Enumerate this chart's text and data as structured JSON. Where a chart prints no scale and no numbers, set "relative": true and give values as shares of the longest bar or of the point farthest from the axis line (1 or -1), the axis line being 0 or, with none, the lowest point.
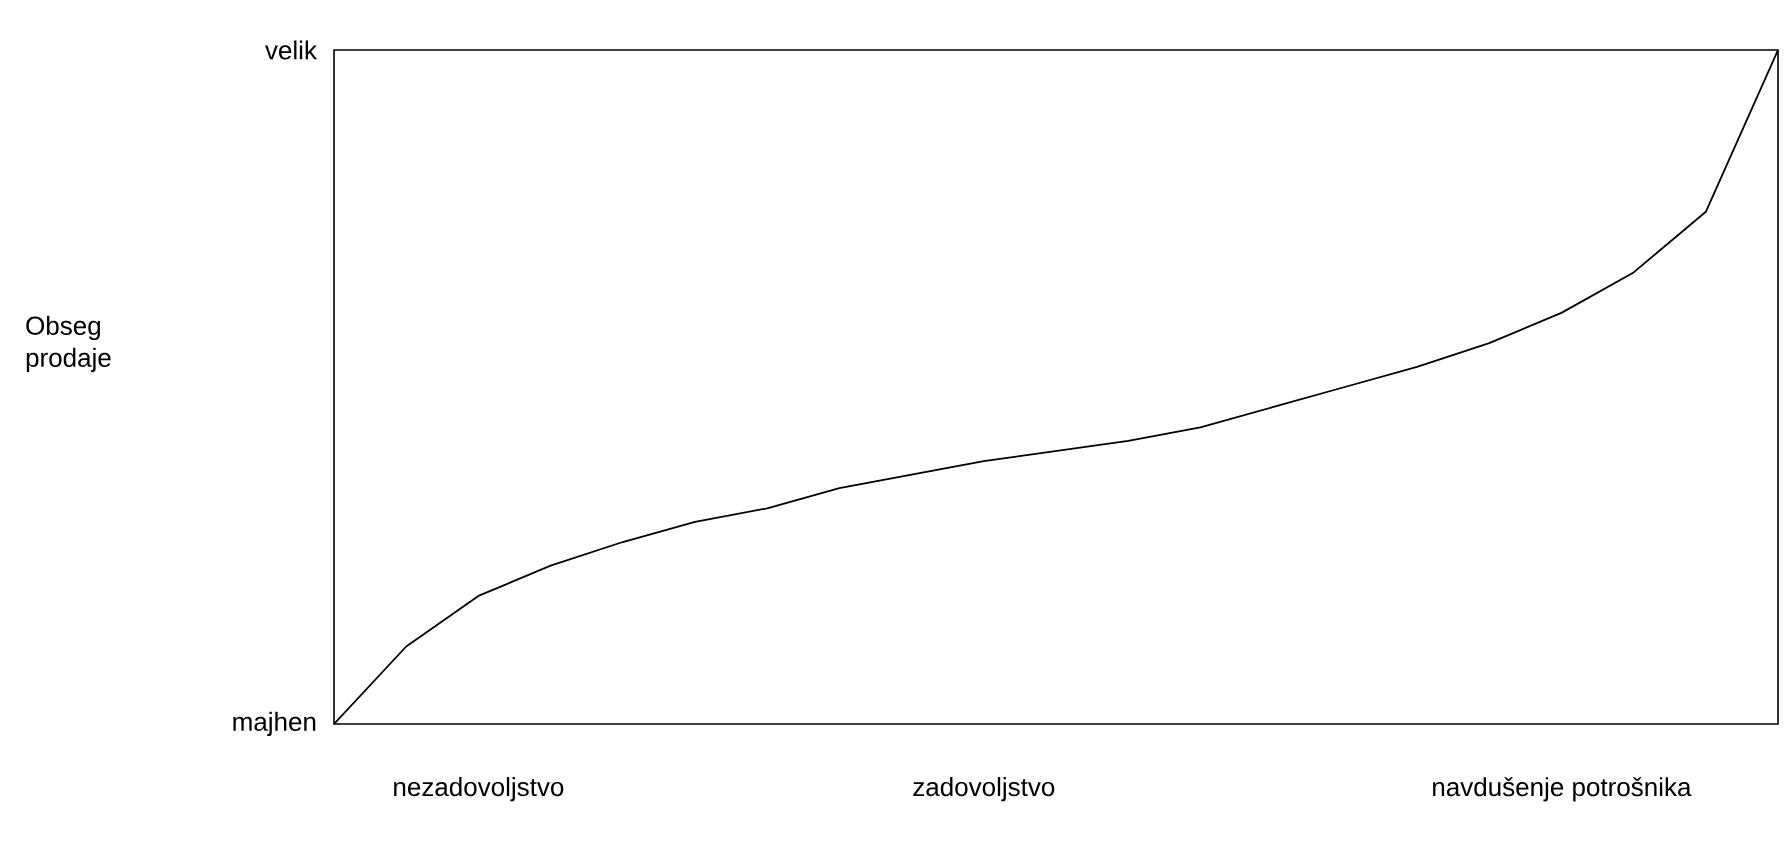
{
  "chart_data": {
    "type": "line",
    "color": "#000000",
    "relative": true,
    "categories": [
      null,
      null,
      "nezadovoljstvo",
      null,
      null,
      null,
      null,
      null,
      null,
      "zadovoljstvo",
      null,
      null,
      null,
      null,
      null,
      null,
      null,
      "navdušenje potrošnika",
      null,
      null,
      null
    ],
    "values": [
      0,
      0.115,
      0.19,
      0.235,
      0.27,
      0.3,
      0.32,
      0.35,
      0.37,
      0.39,
      0.405,
      0.42,
      0.44,
      0.47,
      0.5,
      0.53,
      0.565,
      0.61,
      0.67,
      0.76,
      1
    ],
    "annotations": [
      "Obseg prodaje",
      "velik",
      "majhen"
    ]
  }
}
